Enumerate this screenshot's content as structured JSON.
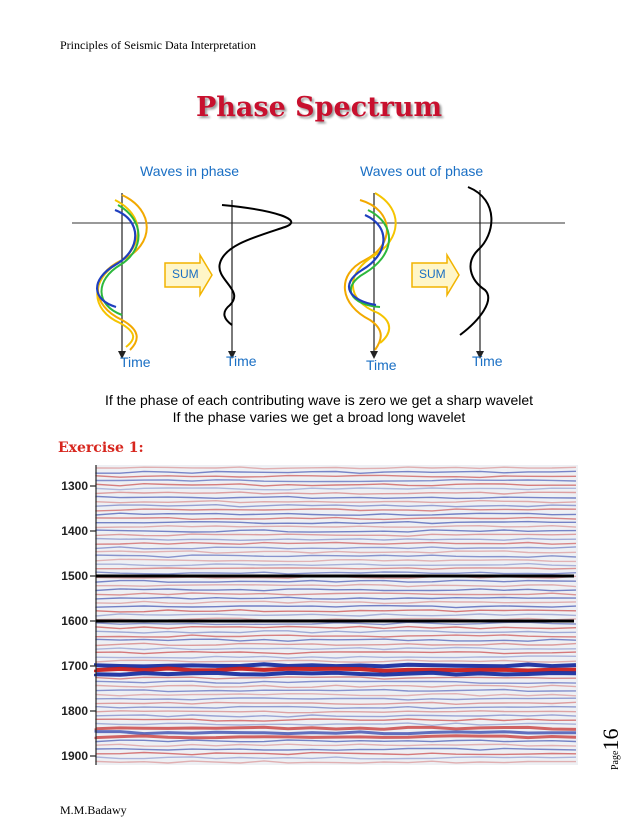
{
  "header": {
    "text": "Principles of Seismic Data Interpretation"
  },
  "title": {
    "text": "Phase Spectrum"
  },
  "figure": {
    "in_phase": {
      "heading": "Waves in phase",
      "sum_label": "SUM",
      "time_left": "Time",
      "time_right": "Time"
    },
    "out_phase": {
      "heading": "Waves out of phase",
      "sum_label": "SUM",
      "time_left": "Time",
      "time_right": "Time"
    },
    "wave_colors": [
      "#f2a900",
      "#1f3fbf",
      "#2db83d",
      "#f5c400"
    ]
  },
  "caption": {
    "line1": "If the phase of each contributing wave is zero we get a sharp wavelet",
    "line2": "If the phase varies we get a broad long wavelet"
  },
  "exercise": {
    "heading": "Exercise 1:"
  },
  "seismic": {
    "depth_ticks": [
      "1300",
      "1400",
      "1500",
      "1600",
      "1700",
      "1800",
      "1900"
    ],
    "marked_horizons": [
      "1500",
      "1600"
    ]
  },
  "page": {
    "word": "Page",
    "number": "16"
  },
  "footer": {
    "author": "M.M.Badawy"
  }
}
